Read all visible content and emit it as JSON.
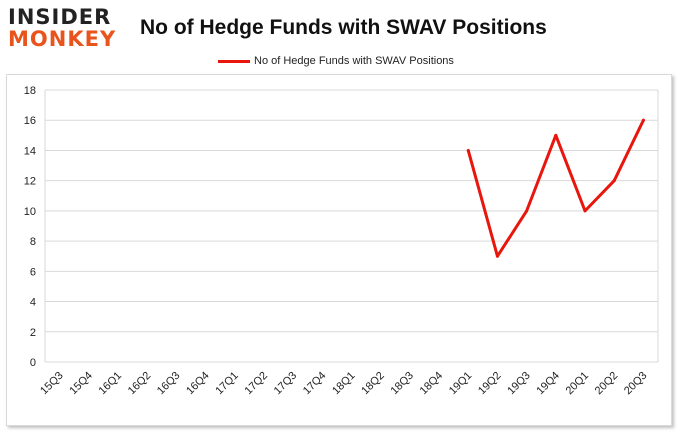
{
  "logo": {
    "line1": "INSIDER",
    "line2": "MONKEY"
  },
  "colors": {
    "line": "#e8160c",
    "grid": "#d9d9d9",
    "logo_accent": "#e8541c"
  },
  "chart_data": {
    "type": "line",
    "title": "No of Hedge Funds with SWAV Positions",
    "xlabel": "",
    "ylabel": "",
    "legend_position": "top-center",
    "grid": true,
    "ylim": [
      0,
      18
    ],
    "yticks": [
      0,
      2,
      4,
      6,
      8,
      10,
      12,
      14,
      16,
      18
    ],
    "categories": [
      "15Q3",
      "15Q4",
      "16Q1",
      "16Q2",
      "16Q3",
      "16Q4",
      "17Q1",
      "17Q2",
      "17Q3",
      "17Q4",
      "18Q1",
      "18Q2",
      "18Q3",
      "18Q4",
      "19Q1",
      "19Q2",
      "19Q3",
      "19Q4",
      "20Q1",
      "20Q2",
      "20Q3"
    ],
    "series": [
      {
        "name": "No of Hedge Funds with SWAV Positions",
        "values": [
          null,
          null,
          null,
          null,
          null,
          null,
          null,
          null,
          null,
          null,
          null,
          null,
          null,
          null,
          14,
          7,
          10,
          15,
          10,
          12,
          16
        ]
      }
    ]
  }
}
